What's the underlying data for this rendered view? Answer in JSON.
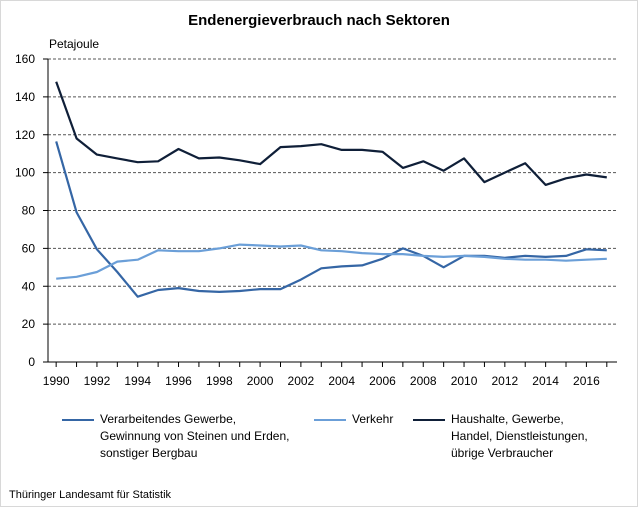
{
  "chart_data": {
    "type": "line",
    "title": "Endenergieverbrauch nach Sektoren",
    "ylabel": "Petajoule",
    "xlabel": "",
    "ylim": [
      0,
      160
    ],
    "yticks": [
      "0",
      "20",
      "40",
      "60",
      "80",
      "100",
      "120",
      "140",
      "160"
    ],
    "xticks": [
      "1990",
      "1992",
      "1994",
      "1996",
      "1998",
      "2000",
      "2002",
      "2004",
      "2006",
      "2008",
      "2010",
      "2012",
      "2014",
      "2016"
    ],
    "x": [
      1990,
      1991,
      1992,
      1993,
      1994,
      1995,
      1996,
      1997,
      1998,
      1999,
      2000,
      2001,
      2002,
      2003,
      2004,
      2005,
      2006,
      2007,
      2008,
      2009,
      2010,
      2011,
      2012,
      2013,
      2014,
      2015,
      2016,
      2017
    ],
    "grid": true,
    "legend_position": "bottom",
    "series": [
      {
        "name": "Verarbeitendes Gewerbe, Gewinnung von Steinen und Erden, sonstiger Bergbau",
        "name_lines": [
          "Verarbeitendes Gewerbe,",
          "Gewinnung von Steinen und Erden,",
          "sonstiger Bergbau"
        ],
        "color": "#3566a5",
        "values": [
          116.5,
          79,
          59.5,
          47.5,
          34.5,
          38,
          39,
          37.5,
          37,
          37.5,
          38.5,
          38.5,
          43.5,
          49.5,
          50.5,
          51,
          54.5,
          60,
          56,
          50,
          56,
          56,
          55,
          56,
          55.5,
          56,
          59.5,
          59
        ]
      },
      {
        "name": "Verkehr",
        "name_lines": [
          "Verkehr"
        ],
        "color": "#6b9fd8",
        "values": [
          44,
          45,
          47.5,
          53,
          54,
          59,
          58.5,
          58.5,
          60,
          62,
          61.5,
          61,
          61.5,
          59,
          58.5,
          57.5,
          57,
          57,
          56,
          55.5,
          56,
          55.5,
          54.5,
          54,
          54,
          53.5,
          54,
          54.5
        ]
      },
      {
        "name": "Haushalte, Gewerbe, Handel, Dienstleistungen, übrige Verbraucher",
        "name_lines": [
          "Haushalte, Gewerbe,",
          "Handel, Dienstleistungen,",
          "übrige Verbraucher"
        ],
        "color": "#0f1f38",
        "values": [
          148,
          118,
          109.5,
          107.5,
          105.5,
          106,
          112.5,
          107.5,
          108,
          106.5,
          104.5,
          113.5,
          114,
          115,
          112,
          112,
          111,
          102.5,
          106,
          101,
          107.5,
          95,
          100,
          105,
          93.5,
          97,
          99,
          97.5
        ]
      }
    ]
  },
  "source": "Thüringer Landesamt für Statistik"
}
